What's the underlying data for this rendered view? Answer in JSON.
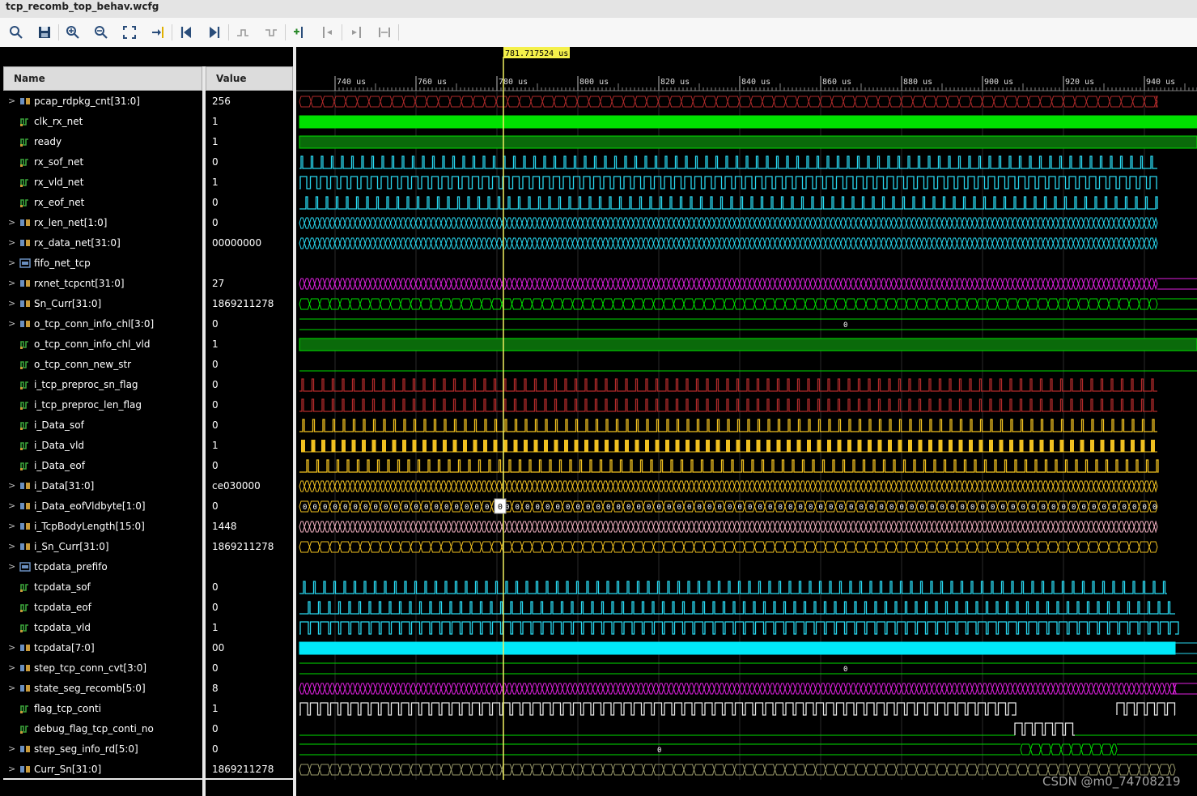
{
  "window": {
    "title": "tcp_recomb_top_behav.wcfg"
  },
  "toolbar": {
    "buttons": [
      {
        "name": "search-icon",
        "x": 20
      },
      {
        "name": "save-icon",
        "x": 55
      },
      {
        "name": "zoom-in-icon",
        "x": 90
      },
      {
        "name": "zoom-out-icon",
        "x": 125
      },
      {
        "name": "zoom-fit-icon",
        "x": 160
      },
      {
        "name": "goto-cursor-icon",
        "x": 195
      },
      {
        "name": "goto-start-icon",
        "x": 230
      },
      {
        "name": "goto-end-icon",
        "x": 265
      },
      {
        "name": "prev-transition-icon",
        "x": 300
      },
      {
        "name": "next-transition-icon",
        "x": 335
      },
      {
        "name": "add-marker-icon",
        "x": 370
      },
      {
        "name": "prev-marker-icon",
        "x": 405
      },
      {
        "name": "next-marker-icon",
        "x": 440
      },
      {
        "name": "swap-cursors-icon",
        "x": 475
      }
    ]
  },
  "columns": {
    "name": "Name",
    "value": "Value"
  },
  "cursor": {
    "label": "781.717524 us"
  },
  "timeline": {
    "ticks": [
      "740 us",
      "760 us",
      "780 us",
      "800 us",
      "820 us",
      "840 us",
      "860 us",
      "880 us",
      "900 us",
      "920 us",
      "940 us"
    ]
  },
  "signals": [
    {
      "name": "pcap_rdpkg_cnt[31:0]",
      "value": "256",
      "bus": true,
      "icon": "bus-icon"
    },
    {
      "name": "clk_rx_net",
      "value": "1",
      "bus": false,
      "icon": "wire-icon"
    },
    {
      "name": "ready",
      "value": "1",
      "bus": false,
      "icon": "wire-icon"
    },
    {
      "name": "rx_sof_net",
      "value": "0",
      "bus": false,
      "icon": "wire-icon"
    },
    {
      "name": "rx_vld_net",
      "value": "1",
      "bus": false,
      "icon": "wire-icon"
    },
    {
      "name": "rx_eof_net",
      "value": "0",
      "bus": false,
      "icon": "wire-icon"
    },
    {
      "name": "rx_len_net[1:0]",
      "value": "0",
      "bus": true,
      "icon": "bus-icon"
    },
    {
      "name": "rx_data_net[31:0]",
      "value": "00000000",
      "bus": true,
      "icon": "bus-icon"
    },
    {
      "name": "fifo_net_tcp",
      "value": "",
      "bus": true,
      "icon": "group-icon"
    },
    {
      "name": "rxnet_tcpcnt[31:0]",
      "value": "27",
      "bus": true,
      "icon": "bus-icon"
    },
    {
      "name": "Sn_Curr[31:0]",
      "value": "1869211278",
      "bus": true,
      "icon": "bus-icon"
    },
    {
      "name": "o_tcp_conn_info_chl[3:0]",
      "value": "0",
      "bus": true,
      "icon": "bus-icon"
    },
    {
      "name": "o_tcp_conn_info_chl_vld",
      "value": "1",
      "bus": false,
      "icon": "wire-icon"
    },
    {
      "name": "o_tcp_conn_new_str",
      "value": "0",
      "bus": false,
      "icon": "wire-icon"
    },
    {
      "name": "i_tcp_preproc_sn_flag",
      "value": "0",
      "bus": false,
      "icon": "wire-icon"
    },
    {
      "name": "i_tcp_preproc_len_flag",
      "value": "0",
      "bus": false,
      "icon": "wire-icon"
    },
    {
      "name": "i_Data_sof",
      "value": "0",
      "bus": false,
      "icon": "wire-icon"
    },
    {
      "name": "i_Data_vld",
      "value": "1",
      "bus": false,
      "icon": "wire-icon"
    },
    {
      "name": "i_Data_eof",
      "value": "0",
      "bus": false,
      "icon": "wire-icon"
    },
    {
      "name": "i_Data[31:0]",
      "value": "ce030000",
      "bus": true,
      "icon": "bus-icon"
    },
    {
      "name": "i_Data_eofVldbyte[1:0]",
      "value": "0",
      "bus": true,
      "icon": "bus-icon"
    },
    {
      "name": "i_TcpBodyLength[15:0]",
      "value": "1448",
      "bus": true,
      "icon": "bus-icon"
    },
    {
      "name": "i_Sn_Curr[31:0]",
      "value": "1869211278",
      "bus": true,
      "icon": "bus-icon"
    },
    {
      "name": "tcpdata_prefifo",
      "value": "",
      "bus": true,
      "icon": "group-icon"
    },
    {
      "name": "tcpdata_sof",
      "value": "0",
      "bus": false,
      "icon": "wire-icon"
    },
    {
      "name": "tcpdata_eof",
      "value": "0",
      "bus": false,
      "icon": "wire-icon"
    },
    {
      "name": "tcpdata_vld",
      "value": "1",
      "bus": false,
      "icon": "wire-icon"
    },
    {
      "name": "tcpdata[7:0]",
      "value": "00",
      "bus": true,
      "icon": "bus-icon"
    },
    {
      "name": "step_tcp_conn_cvt[3:0]",
      "value": "0",
      "bus": true,
      "icon": "bus-icon"
    },
    {
      "name": "state_seg_recomb[5:0]",
      "value": "8",
      "bus": true,
      "icon": "bus-icon"
    },
    {
      "name": "flag_tcp_conti",
      "value": "1",
      "bus": false,
      "icon": "wire-icon"
    },
    {
      "name": "debug_flag_tcp_conti_no",
      "value": "0",
      "bus": false,
      "icon": "wire-icon"
    },
    {
      "name": "step_seg_info_rd[5:0]",
      "value": "0",
      "bus": true,
      "icon": "bus-icon"
    },
    {
      "name": "Curr_Sn[31:0]",
      "value": "1869211278",
      "bus": true,
      "icon": "bus-icon"
    }
  ],
  "wave_labels": {
    "o_tcp_conn_info_chl": "0",
    "step_tcp_conn_cvt": "0",
    "step_seg_info_rd": "0",
    "i_Data_eofVldbyte": "0",
    "step_seg_info_rd_burst": "0"
  },
  "colors": {
    "green": "#00e000",
    "darkgreen": "#0a6a0a",
    "cyan": "#28d8f0",
    "magenta": "#e020e0",
    "red": "#b02a2a",
    "yellow": "#f0c020",
    "pink": "#f0b0c0",
    "white": "#e8e8e8",
    "olive": "#9a9a6a",
    "cursor": "#f0f060"
  },
  "watermark": "CSDN @m0_74708219"
}
